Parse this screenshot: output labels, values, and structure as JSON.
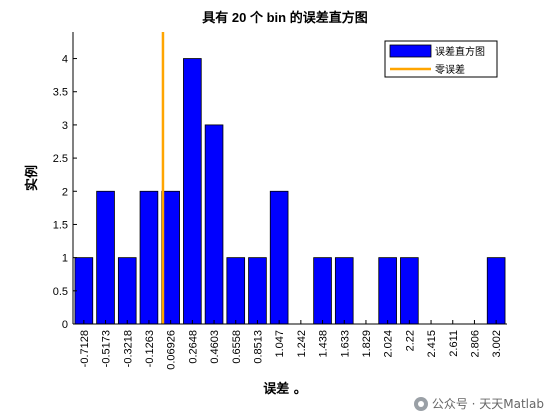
{
  "chart_data": {
    "type": "bar",
    "title": "具有 20 个 bin 的误差直方图",
    "xlabel": "误差 。",
    "ylabel": "实例",
    "categories": [
      "-0.7128",
      "-0.5173",
      "-0.3218",
      "-0.1263",
      "0.06926",
      "0.2648",
      "0.4603",
      "0.6558",
      "0.8513",
      "1.047",
      "1.242",
      "1.438",
      "1.633",
      "1.829",
      "2.024",
      "2.22",
      "2.415",
      "2.611",
      "2.806",
      "3.002"
    ],
    "values": [
      1,
      2,
      1,
      2,
      2,
      4,
      3,
      1,
      1,
      2,
      0,
      1,
      1,
      0,
      1,
      1,
      0,
      0,
      0,
      1
    ],
    "ylim": [
      0,
      4.4
    ],
    "yticks": [
      "0",
      "0.5",
      "1",
      "1.5",
      "2",
      "2.5",
      "3",
      "3.5",
      "4"
    ],
    "zero_error_position": 0,
    "grid": false,
    "legend_position": "top-right",
    "series": [
      {
        "name": "误差直方图",
        "color": "#0000ff"
      },
      {
        "name": "零误差",
        "color": "#ffa500"
      }
    ]
  },
  "watermark": "公众号 · 天天Matlab"
}
